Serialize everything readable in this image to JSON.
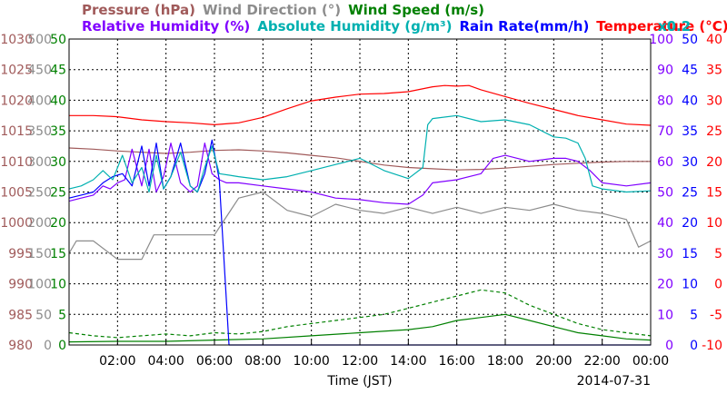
{
  "chart_data": {
    "type": "line",
    "x_tick_labels": [
      "02:00",
      "04:00",
      "06:00",
      "08:00",
      "10:00",
      "12:00",
      "14:00",
      "16:00",
      "18:00",
      "20:00",
      "22:00",
      "00:00"
    ],
    "xlabel": "Time (JST)",
    "date_label": "2014-07-31",
    "legend_row1": [
      {
        "label": "Pressure (hPa)",
        "color": "#a05a5a"
      },
      {
        "label": "Wind Direction (°)",
        "color": "#8c8c8c"
      },
      {
        "label": "Wind Speed (m/s)",
        "color": "#008000"
      }
    ],
    "legend_row2": [
      {
        "label": "Relative Humidity (%)",
        "color": "#8000ff"
      },
      {
        "label": "Absolute Humidity (g/m³)",
        "color": "#00b0b0"
      },
      {
        "label": "Rain Rate(mm/h)",
        "color": "#0000ff"
      },
      {
        "label": "Temperature (°C)",
        "color": "#ff0000"
      }
    ],
    "multiplier_label": "x0.2",
    "axes": {
      "pressure": {
        "ticks": [
          "1030",
          "1025",
          "1020",
          "1015",
          "1010",
          "1005",
          "1000",
          "995",
          "990",
          "985",
          "980"
        ],
        "range": [
          980,
          1030
        ],
        "color": "#a05a5a"
      },
      "wind_direction": {
        "ticks": [
          "500",
          "450",
          "400",
          "350",
          "300",
          "250",
          "200",
          "150",
          "100",
          "50",
          "0"
        ],
        "range": [
          0,
          500
        ],
        "color": "#8c8c8c"
      },
      "wind_speed": {
        "ticks": [
          "50",
          "45",
          "40",
          "35",
          "30",
          "25",
          "20",
          "15",
          "10",
          "5",
          "0"
        ],
        "range": [
          0,
          50
        ],
        "color": "#008000"
      },
      "humidity": {
        "ticks": [
          "100",
          "90",
          "80",
          "70",
          "60",
          "50",
          "40",
          "30",
          "20",
          "10",
          "0"
        ],
        "range": [
          0,
          100
        ],
        "color": "#8000ff"
      },
      "rain_rate": {
        "ticks": [
          "50",
          "45",
          "40",
          "35",
          "30",
          "25",
          "20",
          "15",
          "10",
          "5",
          "0"
        ],
        "range": [
          0,
          50
        ],
        "color": "#0000ff"
      },
      "temperature": {
        "ticks": [
          "40",
          "35",
          "30",
          "25",
          "20",
          "15",
          "10",
          "5",
          "0",
          "-5",
          "-10"
        ],
        "range": [
          -10,
          40
        ],
        "color": "#ff0000"
      }
    },
    "x_range_hours": [
      0,
      24
    ],
    "series": [
      {
        "key": "temperature",
        "color": "#ff0000",
        "axis": "temperature",
        "x": [
          0,
          1,
          2,
          3,
          4,
          5,
          6,
          7,
          8,
          9,
          10,
          11,
          12,
          13,
          14,
          15,
          15.5,
          16,
          16.5,
          17,
          18,
          19,
          20,
          21,
          22,
          23,
          24
        ],
        "y": [
          27.5,
          27.5,
          27.3,
          26.8,
          26.5,
          26.3,
          26.0,
          26.3,
          27.2,
          28.6,
          29.9,
          30.5,
          31.0,
          31.1,
          31.4,
          32.2,
          32.4,
          32.3,
          32.4,
          31.7,
          30.6,
          29.5,
          28.5,
          27.5,
          26.8,
          26.1,
          25.9
        ]
      },
      {
        "key": "pressure",
        "color": "#a05a5a",
        "axis": "pressure",
        "x": [
          0,
          1,
          2,
          3,
          4,
          5,
          6,
          7,
          8,
          9,
          10,
          11,
          12,
          13,
          14,
          15,
          16,
          17,
          18,
          19,
          20,
          21,
          22,
          23,
          24
        ],
        "y": [
          1012.2,
          1012.0,
          1011.7,
          1011.5,
          1011.3,
          1011.5,
          1011.8,
          1011.9,
          1011.7,
          1011.4,
          1011.0,
          1010.6,
          1010.0,
          1009.4,
          1009.0,
          1008.8,
          1008.6,
          1008.7,
          1008.9,
          1009.2,
          1009.5,
          1009.7,
          1009.9,
          1010.0,
          1010.0
        ]
      },
      {
        "key": "absolute_humidity",
        "color": "#00b0b0",
        "axis": "rain_rate",
        "x": [
          0,
          0.5,
          1,
          1.4,
          1.8,
          2.2,
          2.6,
          3.0,
          3.3,
          3.6,
          3.9,
          4.2,
          4.6,
          5.0,
          5.3,
          5.6,
          5.9,
          6.2,
          7,
          8,
          9,
          10,
          11,
          12,
          13,
          14,
          14.6,
          14.8,
          15,
          16,
          17,
          18,
          19,
          20,
          20.5,
          21,
          21.3,
          21.6,
          22,
          23,
          24
        ],
        "y": [
          25.5,
          26,
          27,
          28.5,
          27,
          31,
          26.5,
          29,
          25,
          31,
          25.5,
          27.5,
          31.5,
          26,
          25,
          29,
          32.5,
          28,
          27.5,
          27,
          27.5,
          28.5,
          29.5,
          30.5,
          28.5,
          27.2,
          29,
          36,
          37,
          37.5,
          36.5,
          36.8,
          36,
          34,
          33.8,
          33,
          30.5,
          26,
          25.5,
          25,
          25.2
        ]
      },
      {
        "key": "relative_humidity",
        "color": "#8000ff",
        "axis": "humidity",
        "x": [
          0,
          0.5,
          1,
          1.4,
          1.7,
          2.0,
          2.3,
          2.6,
          3.0,
          3.3,
          3.6,
          3.9,
          4.2,
          4.6,
          5.0,
          5.3,
          5.6,
          5.9,
          6.2,
          6.5,
          7,
          8,
          9,
          10,
          11,
          12,
          13,
          14,
          14.6,
          14.8,
          15,
          16,
          17,
          17.5,
          18,
          19,
          20,
          20.5,
          21,
          21.5,
          22,
          23,
          24
        ],
        "y": [
          47,
          48,
          49,
          52,
          51,
          53,
          54,
          64,
          52,
          64,
          50,
          55,
          66,
          53,
          50,
          52,
          66,
          56,
          54,
          53,
          53,
          52,
          51,
          50,
          48,
          47.5,
          46.5,
          46,
          49,
          51,
          53,
          54,
          56,
          61,
          62,
          60,
          61,
          61,
          60,
          57,
          53,
          52,
          53
        ]
      },
      {
        "key": "rain_rate_x0.2",
        "color": "#0000ff",
        "axis": "rain_rate",
        "x": [
          0,
          0.5,
          1,
          1.4,
          1.8,
          2.2,
          2.6,
          3.0,
          3.3,
          3.6,
          3.9,
          4.2,
          4.6,
          5.0,
          5.3,
          5.6,
          5.9,
          6.2,
          6.6,
          24
        ],
        "y": [
          24,
          24.5,
          25,
          26.5,
          27.5,
          28,
          26,
          32.5,
          26,
          33,
          25.5,
          27.5,
          33,
          26,
          25,
          28,
          33.5,
          27,
          0,
          0
        ]
      },
      {
        "key": "wind_speed",
        "color": "#008000",
        "axis": "wind_speed",
        "style": "solid",
        "x": [
          0,
          2,
          4,
          6,
          8,
          10,
          12,
          14,
          15,
          16,
          17,
          18,
          19,
          20,
          21,
          22,
          23,
          24
        ],
        "y": [
          0.5,
          0.6,
          0.6,
          0.8,
          1.0,
          1.5,
          2.0,
          2.5,
          3.0,
          4.0,
          4.5,
          5.0,
          4.0,
          3.0,
          2.0,
          1.5,
          1.0,
          0.8
        ]
      },
      {
        "key": "wind_gust",
        "color": "#008000",
        "axis": "wind_speed",
        "style": "dashed",
        "x": [
          0,
          1,
          2,
          3,
          4,
          5,
          6,
          7,
          8,
          9,
          10,
          11,
          12,
          13,
          14,
          15,
          16,
          17,
          18,
          19,
          20,
          21,
          22,
          23,
          24
        ],
        "y": [
          2.0,
          1.5,
          1.2,
          1.5,
          1.8,
          1.5,
          2.0,
          1.8,
          2.2,
          3.0,
          3.5,
          4.0,
          4.5,
          5.0,
          6.0,
          7.0,
          8.0,
          9.0,
          8.5,
          6.5,
          5.0,
          3.5,
          2.5,
          2.0,
          1.5
        ]
      },
      {
        "key": "wind_direction",
        "color": "#8c8c8c",
        "axis": "wind_direction",
        "x": [
          0,
          0.3,
          1,
          2,
          3,
          3.5,
          4,
          5,
          6,
          6.5,
          7,
          8,
          9,
          10,
          11,
          12,
          13,
          14,
          15,
          16,
          17,
          18,
          19,
          20,
          21,
          22,
          23,
          23.5,
          24
        ],
        "y": [
          150,
          170,
          170,
          140,
          140,
          180,
          180,
          180,
          180,
          210,
          240,
          250,
          220,
          210,
          230,
          220,
          215,
          225,
          215,
          225,
          215,
          225,
          220,
          230,
          220,
          215,
          205,
          160,
          170
        ]
      }
    ]
  }
}
